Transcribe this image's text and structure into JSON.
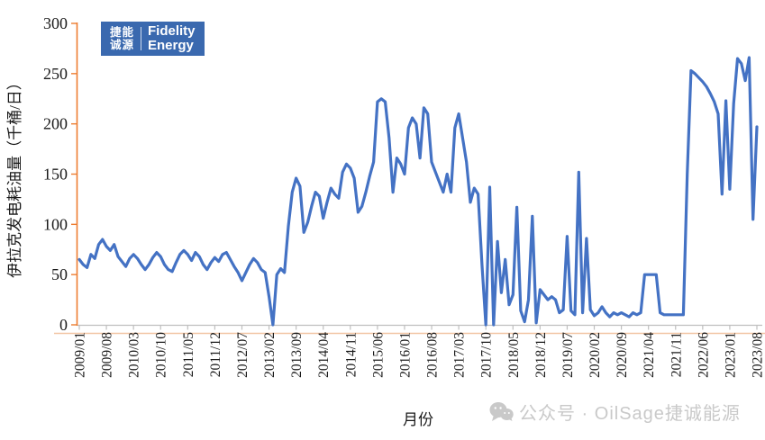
{
  "logo": {
    "cn_line1": "捷能",
    "cn_line2": "诚源",
    "en_line1": "Fidelity",
    "en_line2": "Energy",
    "bg_color": "#3A69AF"
  },
  "watermark": {
    "icon": "wechat-icon",
    "text": "公众号 · OilSage捷诚能源",
    "color": "#C9C9C9"
  },
  "chart_data": {
    "type": "line",
    "title": "",
    "ylabel": "伊拉克发电耗油量（千桶/日）",
    "xlabel": "月份",
    "x_start": "2009/01",
    "x_end": "2023/08",
    "frequency": "monthly",
    "x_tick_labels": [
      "2009/01",
      "2009/08",
      "2010/03",
      "2010/10",
      "2011/05",
      "2011/12",
      "2012/07",
      "2013/02",
      "2013/09",
      "2014/04",
      "2014/11",
      "2015/06",
      "2016/01",
      "2016/08",
      "2017/03",
      "2017/10",
      "2018/05",
      "2018/12",
      "2019/07",
      "2020/02",
      "2020/09",
      "2021/04",
      "2021/11",
      "2022/06",
      "2023/01",
      "2023/08"
    ],
    "y_ticks": [
      0,
      50,
      100,
      150,
      200,
      250,
      300
    ],
    "ylim": [
      0,
      300
    ],
    "grid": false,
    "legend": "none",
    "line_color": "#4472C4",
    "y_axis_color": "#ED7D31",
    "x_axis_color": "#BFBFBF",
    "baseline_accent_color": "#F2C5A3",
    "series": [
      {
        "name": "伊拉克发电耗油量",
        "values": [
          65,
          60,
          57,
          70,
          66,
          80,
          85,
          78,
          74,
          80,
          68,
          63,
          58,
          66,
          70,
          66,
          60,
          55,
          60,
          67,
          72,
          68,
          60,
          55,
          53,
          62,
          70,
          74,
          70,
          64,
          72,
          68,
          60,
          55,
          62,
          67,
          63,
          70,
          72,
          65,
          58,
          52,
          44,
          52,
          60,
          66,
          62,
          55,
          52,
          28,
          0,
          50,
          56,
          52,
          98,
          132,
          146,
          138,
          92,
          102,
          118,
          132,
          128,
          106,
          122,
          136,
          130,
          126,
          152,
          160,
          156,
          146,
          112,
          118,
          132,
          148,
          162,
          222,
          225,
          222,
          186,
          132,
          166,
          160,
          150,
          196,
          206,
          200,
          166,
          216,
          210,
          162,
          152,
          142,
          132,
          150,
          132,
          196,
          210,
          186,
          162,
          122,
          136,
          130,
          60,
          0,
          137,
          0,
          83,
          32,
          65,
          20,
          30,
          117,
          14,
          3,
          25,
          108,
          2,
          35,
          30,
          25,
          28,
          25,
          12,
          15,
          88,
          14,
          10,
          152,
          12,
          86,
          15,
          9,
          12,
          18,
          12,
          8,
          12,
          10,
          12,
          10,
          8,
          12,
          10,
          12,
          50,
          50,
          50,
          50,
          12,
          10,
          10,
          10,
          10,
          10,
          10,
          150,
          253,
          250,
          246,
          242,
          237,
          230,
          222,
          210,
          130,
          223,
          135,
          220,
          265,
          260,
          243,
          266,
          105,
          197
        ]
      }
    ]
  }
}
